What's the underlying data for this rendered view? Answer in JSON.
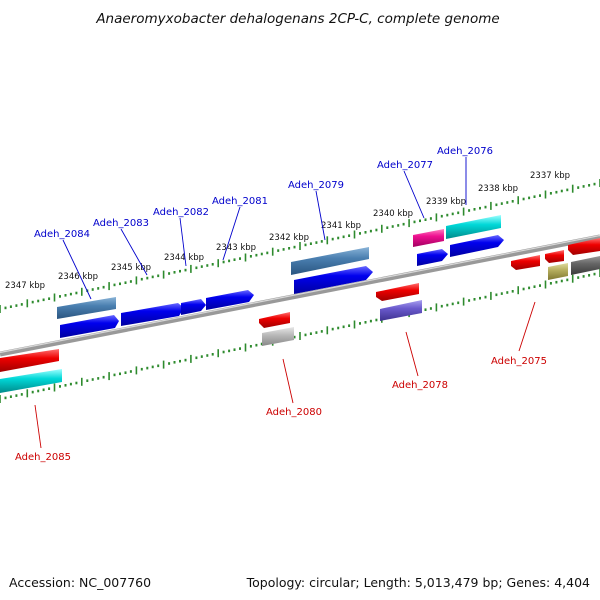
{
  "title": "Anaeromyxobacter dehalogenans 2CP-C, complete genome",
  "accession": "Accession: NC_007760",
  "summary": "Topology: circular; Length: 5,013,479 bp; Genes: 4,404",
  "colors": {
    "strand_plus_label": "#0000cc",
    "strand_minus_label": "#cc0000",
    "tick": "#2e8b2e",
    "backbone": "#888888"
  },
  "kbp_labels": [
    "2347 kbp",
    "2346 kbp",
    "2345 kbp",
    "2344 kbp",
    "2343 kbp",
    "2342 kbp",
    "2341 kbp",
    "2340 kbp",
    "2339 kbp",
    "2338 kbp",
    "2337 kbp"
  ],
  "gene_labels_top": [
    "Adeh_2084",
    "Adeh_2083",
    "Adeh_2082",
    "Adeh_2081",
    "Adeh_2079",
    "Adeh_2077",
    "Adeh_2076"
  ],
  "gene_labels_bottom": [
    "Adeh_2085",
    "Adeh_2080",
    "Adeh_2078",
    "Adeh_2075"
  ]
}
